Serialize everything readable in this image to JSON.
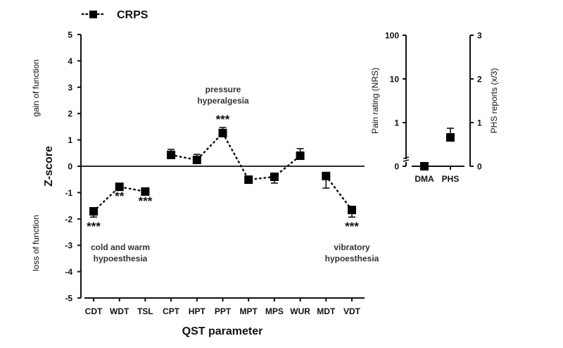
{
  "chart_data": [
    {
      "type": "line",
      "panel": "main",
      "title": "",
      "xlabel": "QST parameter",
      "ylabel": "Z-score",
      "ylabel_upper": "gain of function",
      "ylabel_lower": "loss of function",
      "ylim": [
        -5,
        5
      ],
      "yticks": [
        5,
        4,
        3,
        2,
        1,
        0,
        -1,
        -2,
        -3,
        -4,
        -5
      ],
      "zero_line": true,
      "grid": false,
      "legend": {
        "position": "top-left",
        "entries": [
          "CRPS"
        ]
      },
      "categories": [
        "CDT",
        "WDT",
        "TSL",
        "CPT",
        "HPT",
        "PPT",
        "MPT",
        "MPS",
        "WUR",
        "MDT",
        "VDT"
      ],
      "series": [
        {
          "name": "CRPS",
          "marker": "square",
          "line_style": "dotted",
          "values": [
            -1.71,
            -0.78,
            -0.96,
            0.43,
            0.24,
            1.26,
            -0.51,
            -0.4,
            0.4,
            -0.37,
            -1.66
          ],
          "error": [
            0.22,
            0.12,
            0.1,
            0.21,
            0.21,
            0.21,
            0.1,
            0.24,
            0.27,
            0.46,
            0.27
          ],
          "error_direction": [
            "down",
            "up",
            "up",
            "up",
            "up",
            "up",
            "down",
            "down",
            "up",
            "down",
            "down"
          ],
          "connected_groups": [
            [
              0,
              1,
              2
            ],
            [
              3,
              4,
              5,
              6,
              7,
              8
            ],
            [
              9,
              10
            ]
          ]
        }
      ],
      "significance": [
        {
          "category": "CDT",
          "label": "***",
          "position": "below"
        },
        {
          "category": "WDT",
          "label": "**",
          "position": "below"
        },
        {
          "category": "TSL",
          "label": "***",
          "position": "below"
        },
        {
          "category": "PPT",
          "label": "***",
          "position": "above"
        },
        {
          "category": "VDT",
          "label": "***",
          "position": "below"
        }
      ],
      "annotations": [
        {
          "lines": [
            "pressure",
            "hyperalgesia"
          ],
          "near": "PPT"
        },
        {
          "lines": [
            "cold and warm",
            "hypoesthesia"
          ],
          "near": "WDT"
        },
        {
          "lines": [
            "vibratory",
            "hypoesthesia"
          ],
          "near": "VDT"
        }
      ]
    },
    {
      "type": "scatter",
      "panel": "inset",
      "categories": [
        "DMA",
        "PHS"
      ],
      "ylabel_left": "Pain rating (NRS)",
      "yticks_left": [
        "100",
        "10",
        "1",
        "0"
      ],
      "yscale_left": "log with axis break",
      "ylabel_right": "PHS reports (x/3)",
      "yticks_right": [
        "3",
        "2",
        "1",
        "0"
      ],
      "ylim_right": [
        0,
        3
      ],
      "points": [
        {
          "category": "DMA",
          "axis": "left",
          "value": 0,
          "error": 0
        },
        {
          "category": "PHS",
          "axis": "right",
          "value": 0.66,
          "error": 0.21
        }
      ]
    }
  ]
}
